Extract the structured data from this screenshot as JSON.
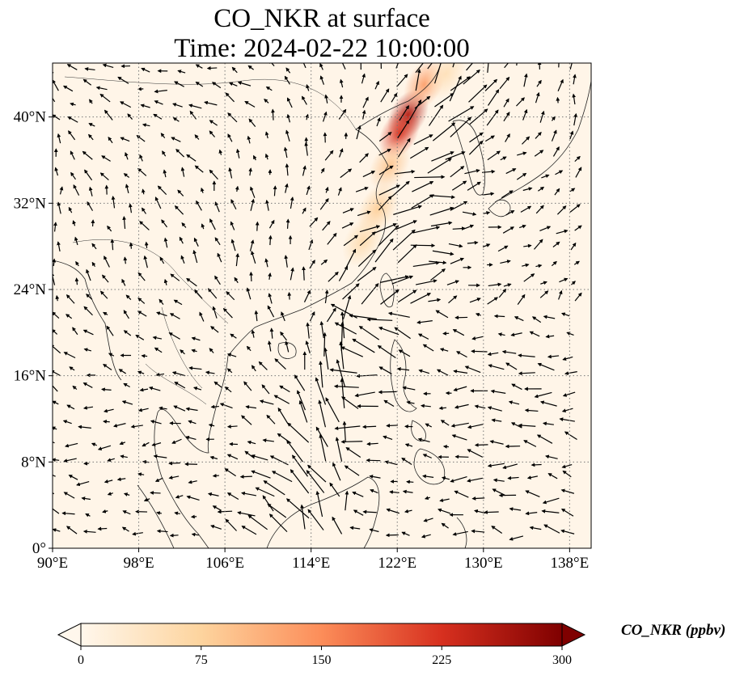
{
  "title": {
    "line1": "CO_NKR at surface",
    "line2": "Time: 2024-02-22 10:00:00"
  },
  "map": {
    "projection": "plate-carree",
    "lon_range": [
      90,
      140
    ],
    "lat_range": [
      0,
      45
    ],
    "background_color": "#fff5e8",
    "gridlines": "dotted",
    "lon_ticks": [
      {
        "value": 90,
        "label": "90°E"
      },
      {
        "value": 98,
        "label": "98°E"
      },
      {
        "value": 106,
        "label": "106°E"
      },
      {
        "value": 114,
        "label": "114°E"
      },
      {
        "value": 122,
        "label": "122°E"
      },
      {
        "value": 130,
        "label": "130°E"
      },
      {
        "value": 138,
        "label": "138°E"
      }
    ],
    "lat_ticks": [
      {
        "value": 0,
        "label": "0°"
      },
      {
        "value": 8,
        "label": "8°N"
      },
      {
        "value": 16,
        "label": "16°N"
      },
      {
        "value": 24,
        "label": "24°N"
      },
      {
        "value": 32,
        "label": "32°N"
      },
      {
        "value": 40,
        "label": "40°N"
      }
    ],
    "plume": [
      {
        "lon": 123.0,
        "lat": 40.2,
        "value": 260
      },
      {
        "lon": 122.2,
        "lat": 38.5,
        "value": 220
      },
      {
        "lon": 124.5,
        "lat": 43.0,
        "value": 130
      },
      {
        "lon": 121.3,
        "lat": 35.5,
        "value": 90
      },
      {
        "lon": 120.2,
        "lat": 31.5,
        "value": 80
      },
      {
        "lon": 118.8,
        "lat": 28.5,
        "value": 60
      },
      {
        "lon": 126.5,
        "lat": 44.0,
        "value": 50
      }
    ],
    "wind_vectors": "quiver"
  },
  "colorbar": {
    "label": "CO_NKR (ppbv)",
    "min": 0,
    "max": 300,
    "extend": "both",
    "colormap": "OrRd",
    "ticks": [
      {
        "value": 0,
        "label": "0"
      },
      {
        "value": 75,
        "label": "75"
      },
      {
        "value": 150,
        "label": "150"
      },
      {
        "value": 225,
        "label": "225"
      },
      {
        "value": 300,
        "label": "300"
      }
    ]
  }
}
